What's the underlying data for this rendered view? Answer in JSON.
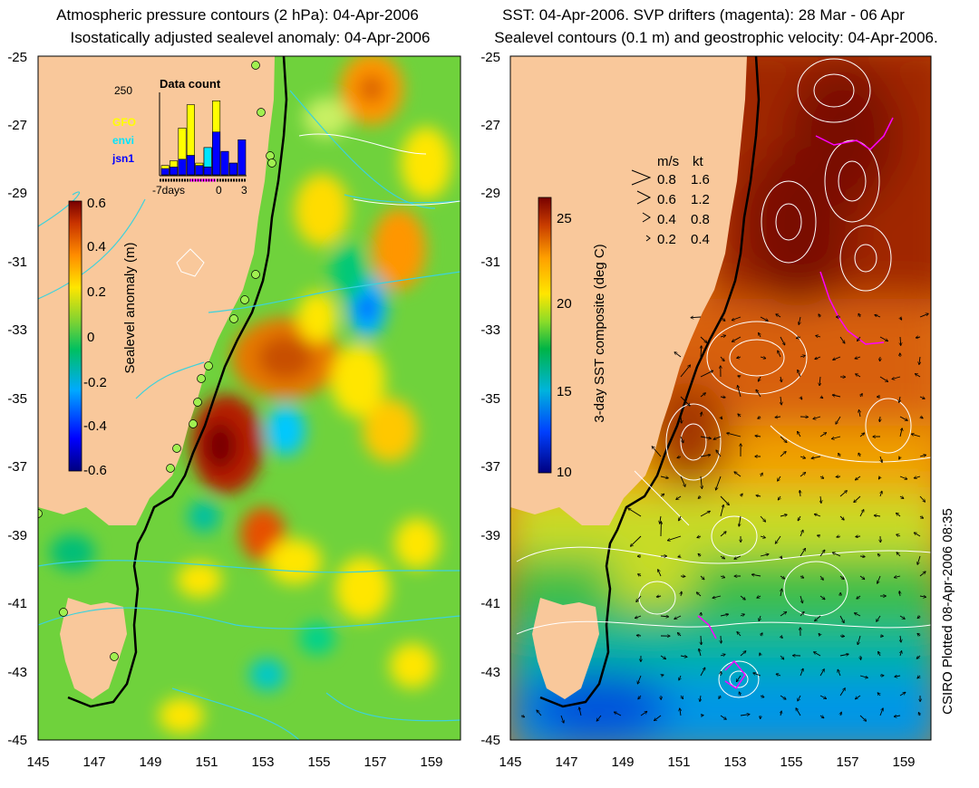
{
  "left_panel": {
    "title_line1": "Atmospheric pressure contours (2 hPa): 04-Apr-2006",
    "title_line2": "Isostatically adjusted sealevel anomaly: 04-Apr-2006",
    "colorbar_label": "Sealevel anomaly (m)",
    "colorbar_ticks": [
      "0.6",
      "0.4",
      "0.2",
      "0",
      "-0.2",
      "-0.4",
      "-0.6"
    ],
    "inset": {
      "title": "Data count",
      "ymax_label": "250",
      "legend": [
        {
          "name": "GFO",
          "color": "#ffff00"
        },
        {
          "name": "envi",
          "color": "#00e5ff"
        },
        {
          "name": "jsn1",
          "color": "#0000ff"
        }
      ],
      "xticks": [
        "-7days",
        "0",
        "3"
      ],
      "bars_gfo": [
        0.12,
        0.18,
        0.6,
        0.9,
        0.15,
        0.2,
        0.95,
        0.2,
        0.15,
        0.0
      ],
      "bars_jsn1": [
        0.08,
        0.1,
        0.2,
        0.25,
        0.12,
        0.1,
        0.55,
        0.3,
        0.15,
        0.45
      ],
      "bars_envi": [
        0.0,
        0.0,
        0.0,
        0.0,
        0.0,
        0.25,
        0.0,
        0.0,
        0.0,
        0.0
      ]
    }
  },
  "right_panel": {
    "title_line1": "SST: 04-Apr-2006. SVP drifters (magenta): 28 Mar - 06 Apr",
    "title_line2": "Sealevel contours (0.1 m) and geostrophic velocity: 04-Apr-2006.",
    "colorbar_label": "3-day SST composite (deg C)",
    "colorbar_ticks": [
      "25",
      "20",
      "15",
      "10"
    ],
    "velocity_legend": {
      "header_ms": "m/s",
      "header_kt": "kt",
      "rows": [
        {
          "ms": "0.8",
          "kt": "1.6"
        },
        {
          "ms": "0.6",
          "kt": "1.2"
        },
        {
          "ms": "0.4",
          "kt": "0.8"
        },
        {
          "ms": "0.2",
          "kt": "0.4"
        }
      ]
    }
  },
  "axes": {
    "lat_labels": [
      "-25",
      "-27",
      "-29",
      "-31",
      "-33",
      "-35",
      "-37",
      "-39",
      "-41",
      "-43",
      "-45"
    ],
    "lon_labels": [
      "145",
      "147",
      "149",
      "151",
      "153",
      "155",
      "157",
      "159"
    ],
    "lat_range": [
      -45,
      -25
    ],
    "lon_range": [
      145,
      160
    ]
  },
  "credit": "CSIRO Plotted 08-Apr-2006 08:35",
  "colors": {
    "land": "#f9c89b",
    "ssh_scale": [
      "#00007f",
      "#0000ff",
      "#00aaff",
      "#00d070",
      "#3cc53c",
      "#b4e632",
      "#ffe600",
      "#ff8c00",
      "#d23c00",
      "#780000"
    ],
    "sst_scale": [
      "#000080",
      "#0040ff",
      "#00b4dc",
      "#00b446",
      "#64d228",
      "#ffe600",
      "#ffa000",
      "#dc5000",
      "#a01e00",
      "#780000"
    ]
  }
}
